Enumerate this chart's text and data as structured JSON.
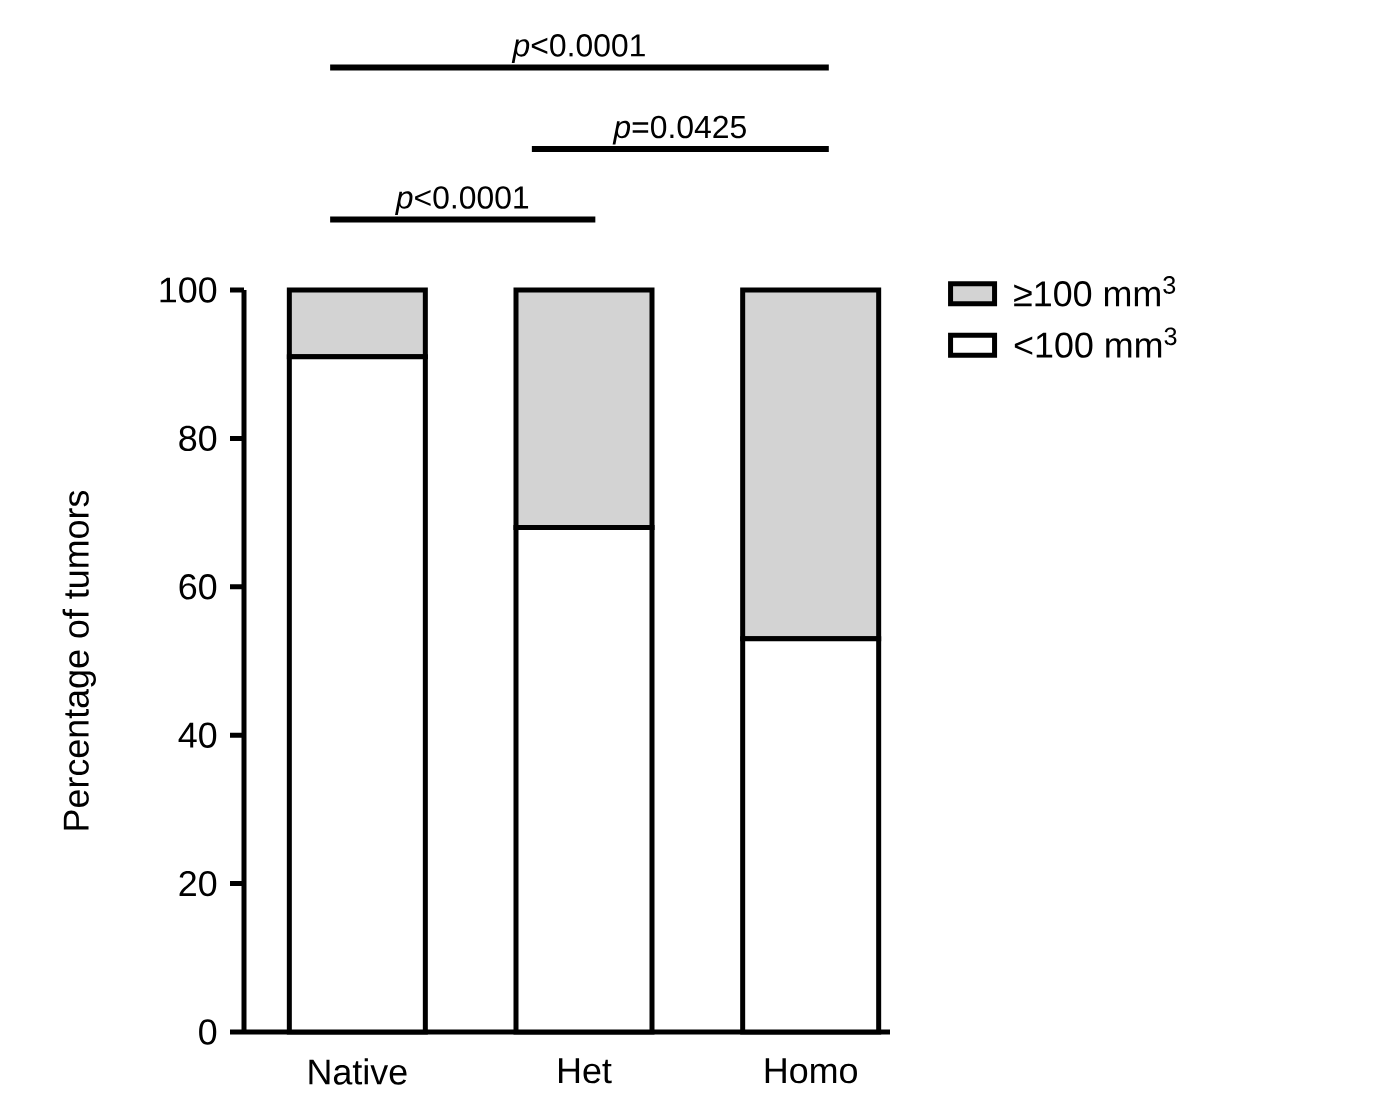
{
  "chart_data": {
    "type": "bar",
    "stacked": true,
    "categories": [
      "Native",
      "Het",
      "Homo"
    ],
    "series": [
      {
        "name": "<100 mm$^{3}$",
        "color": "#ffffff",
        "values": [
          91,
          68,
          53
        ]
      },
      {
        "name": "≥100 mm$^{3}$",
        "color": "#d3d3d3",
        "values": [
          9,
          32,
          47
        ]
      }
    ],
    "ylabel": "Percentage of tumors",
    "ylim": [
      0,
      100
    ],
    "yticks": [
      0,
      20,
      40,
      60,
      80,
      100
    ],
    "grid": false,
    "legend": "top right",
    "annotations": [
      "*p*<0.0001",
      "*p*=0.0425",
      "*p*<0.0001"
    ]
  }
}
